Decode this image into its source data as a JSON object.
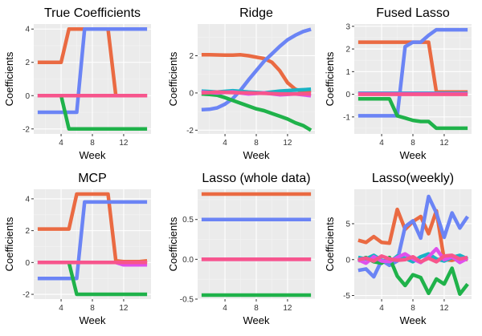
{
  "colors": {
    "panel_bg": "#ebebeb",
    "grid_major": "#ffffff",
    "grid_minor": "#f4f4f4",
    "series": [
      "#ea6a42",
      "#6b84f5",
      "#1fb24a",
      "#19b3c4",
      "#df50ec",
      "#f7558c"
    ]
  },
  "chart_data": [
    {
      "type": "line",
      "title": "True Coefficients",
      "xlabel": "Week",
      "ylabel": "Coefficients",
      "xlim": [
        0.5,
        15.5
      ],
      "ylim": [
        -2.3,
        4.3
      ],
      "xticks": [
        4,
        8,
        12
      ],
      "yticks": [
        -2,
        0,
        2,
        4
      ],
      "ytick_labels": [
        "-2",
        "0",
        "2",
        "4"
      ],
      "grid": true,
      "series": [
        {
          "color": "#ea6a42",
          "x": [
            1,
            2,
            3,
            4,
            5,
            6,
            7,
            8,
            9,
            10,
            11,
            12,
            13,
            14,
            15
          ],
          "values": [
            2,
            2,
            2,
            2,
            4,
            4,
            4,
            4,
            4,
            4,
            0,
            0,
            0,
            0,
            0
          ]
        },
        {
          "color": "#6b84f5",
          "x": [
            1,
            2,
            3,
            4,
            5,
            6,
            7,
            8,
            9,
            10,
            11,
            12,
            13,
            14,
            15
          ],
          "values": [
            -1,
            -1,
            -1,
            -1,
            -1,
            -1,
            4,
            4,
            4,
            4,
            4,
            4,
            4,
            4,
            4
          ]
        },
        {
          "color": "#1fb24a",
          "x": [
            1,
            2,
            3,
            4,
            5,
            6,
            7,
            8,
            9,
            10,
            11,
            12,
            13,
            14,
            15
          ],
          "values": [
            0,
            0,
            0,
            0,
            -2,
            -2,
            -2,
            -2,
            -2,
            -2,
            -2,
            -2,
            -2,
            -2,
            -2
          ]
        },
        {
          "color": "#df50ec",
          "x": [
            1,
            15
          ],
          "values": [
            0,
            0
          ]
        },
        {
          "color": "#f7558c",
          "x": [
            1,
            15
          ],
          "values": [
            0,
            0
          ]
        }
      ]
    },
    {
      "type": "line",
      "title": "Ridge",
      "xlabel": "Week",
      "ylabel": "Coefficients",
      "xlim": [
        0.5,
        15.5
      ],
      "ylim": [
        -2.2,
        3.7
      ],
      "xticks": [
        4,
        8,
        12
      ],
      "yticks": [
        -2,
        0,
        2
      ],
      "ytick_labels": [
        "-2",
        "0",
        "2"
      ],
      "grid": true,
      "series": [
        {
          "color": "#ea6a42",
          "x": [
            1,
            2,
            3,
            4,
            5,
            6,
            7,
            8,
            9,
            10,
            11,
            12,
            13,
            14,
            15
          ],
          "values": [
            2.05,
            2.05,
            2.04,
            2.03,
            2.03,
            2.05,
            2.0,
            1.92,
            1.85,
            1.65,
            1.2,
            0.55,
            0.2,
            0.05,
            0.0
          ]
        },
        {
          "color": "#6b84f5",
          "x": [
            1,
            2,
            3,
            4,
            5,
            6,
            7,
            8,
            9,
            10,
            11,
            12,
            13,
            14,
            15
          ],
          "values": [
            -0.9,
            -0.88,
            -0.8,
            -0.6,
            -0.3,
            0.15,
            0.7,
            1.2,
            1.7,
            2.1,
            2.5,
            2.85,
            3.1,
            3.3,
            3.42
          ]
        },
        {
          "color": "#1fb24a",
          "x": [
            1,
            2,
            3,
            4,
            5,
            6,
            7,
            8,
            9,
            10,
            11,
            12,
            13,
            14,
            15
          ],
          "values": [
            -0.05,
            -0.08,
            -0.12,
            -0.25,
            -0.4,
            -0.55,
            -0.7,
            -0.85,
            -0.95,
            -1.1,
            -1.25,
            -1.4,
            -1.6,
            -1.75,
            -2.0
          ]
        },
        {
          "color": "#19b3c4",
          "x": [
            1,
            3,
            5,
            7,
            9,
            11,
            13,
            15
          ],
          "values": [
            0.1,
            0.05,
            0.12,
            0.05,
            0.0,
            0.1,
            0.15,
            0.2
          ]
        },
        {
          "color": "#df50ec",
          "x": [
            1,
            3,
            5,
            7,
            9,
            11,
            13,
            15
          ],
          "values": [
            0.05,
            0.0,
            0.05,
            -0.05,
            0.0,
            -0.1,
            -0.05,
            -0.15
          ]
        },
        {
          "color": "#f7558c",
          "x": [
            1,
            3,
            5,
            7,
            9,
            11,
            13,
            15
          ],
          "values": [
            0.0,
            0.05,
            0.02,
            0.0,
            -0.02,
            -0.05,
            -0.05,
            -0.05
          ]
        }
      ]
    },
    {
      "type": "line",
      "title": "Fused Lasso",
      "xlabel": "Week",
      "ylabel": "Coefficients",
      "xlim": [
        0.5,
        15.5
      ],
      "ylim": [
        -1.75,
        3.1
      ],
      "xticks": [
        4,
        8,
        12
      ],
      "yticks": [
        -1,
        0,
        1,
        2,
        3
      ],
      "ytick_labels": [
        "-1",
        "0",
        "1",
        "2",
        "3"
      ],
      "grid": true,
      "series": [
        {
          "color": "#ea6a42",
          "x": [
            1,
            2,
            3,
            4,
            5,
            6,
            7,
            8,
            9,
            10,
            11,
            12,
            13,
            14,
            15
          ],
          "values": [
            2.3,
            2.3,
            2.3,
            2.3,
            2.3,
            2.3,
            2.3,
            2.3,
            2.3,
            2.3,
            0.1,
            0.1,
            0.1,
            0.1,
            0.1
          ]
        },
        {
          "color": "#6b84f5",
          "x": [
            1,
            2,
            3,
            4,
            5,
            6,
            7,
            8,
            9,
            10,
            11,
            12,
            13,
            14,
            15
          ],
          "values": [
            -0.95,
            -0.95,
            -0.95,
            -0.95,
            -0.95,
            -0.95,
            2.1,
            2.3,
            2.3,
            2.6,
            2.85,
            2.85,
            2.85,
            2.85,
            2.85
          ]
        },
        {
          "color": "#1fb24a",
          "x": [
            1,
            2,
            3,
            4,
            5,
            6,
            7,
            8,
            9,
            10,
            11,
            12,
            13,
            14,
            15
          ],
          "values": [
            -0.2,
            -0.2,
            -0.2,
            -0.2,
            -0.2,
            -0.95,
            -1.05,
            -1.15,
            -1.2,
            -1.2,
            -1.5,
            -1.5,
            -1.5,
            -1.5,
            -1.5
          ]
        },
        {
          "color": "#19b3c4",
          "x": [
            1,
            15
          ],
          "values": [
            0.05,
            0.05
          ]
        },
        {
          "color": "#df50ec",
          "x": [
            1,
            15
          ],
          "values": [
            0.02,
            0.02
          ]
        },
        {
          "color": "#f7558c",
          "x": [
            1,
            15
          ],
          "values": [
            0.0,
            0.0
          ]
        }
      ]
    },
    {
      "type": "line",
      "title": "MCP",
      "xlabel": "Week",
      "ylabel": "Coefficients",
      "xlim": [
        0.5,
        15.5
      ],
      "ylim": [
        -2.3,
        4.6
      ],
      "xticks": [
        4,
        8,
        12
      ],
      "yticks": [
        -2,
        0,
        2,
        4
      ],
      "ytick_labels": [
        "-2",
        "0",
        "2",
        "4"
      ],
      "grid": true,
      "series": [
        {
          "color": "#ea6a42",
          "x": [
            1,
            2,
            3,
            4,
            5,
            6,
            7,
            8,
            9,
            10,
            11,
            12,
            13,
            14,
            15
          ],
          "values": [
            2.1,
            2.1,
            2.1,
            2.1,
            2.1,
            4.3,
            4.3,
            4.3,
            4.3,
            4.3,
            0.1,
            0.05,
            0.05,
            0.05,
            0.1
          ]
        },
        {
          "color": "#6b84f5",
          "x": [
            1,
            2,
            3,
            4,
            5,
            6,
            7,
            8,
            9,
            10,
            11,
            12,
            13,
            14,
            15
          ],
          "values": [
            -1.0,
            -1.0,
            -1.0,
            -1.0,
            -1.0,
            -1.0,
            3.8,
            3.8,
            3.8,
            3.8,
            3.8,
            3.8,
            3.8,
            3.8,
            3.8
          ]
        },
        {
          "color": "#1fb24a",
          "x": [
            1,
            2,
            3,
            4,
            5,
            6,
            7,
            8,
            9,
            10,
            11,
            12,
            13,
            14,
            15
          ],
          "values": [
            0.0,
            0.0,
            0.0,
            0.0,
            0.0,
            -2.0,
            -2.0,
            -2.0,
            -2.0,
            -2.0,
            -2.0,
            -2.0,
            -2.0,
            -2.0,
            -2.0
          ]
        },
        {
          "color": "#df50ec",
          "x": [
            1,
            11,
            12,
            15
          ],
          "values": [
            0.0,
            0.0,
            -0.15,
            -0.15
          ]
        },
        {
          "color": "#f7558c",
          "x": [
            1,
            15
          ],
          "values": [
            0.0,
            0.0
          ]
        }
      ]
    },
    {
      "type": "line",
      "title": "Lasso (whole data)",
      "xlabel": "Week",
      "ylabel": "Coefficients",
      "xlim": [
        0.5,
        15.5
      ],
      "ylim": [
        -0.5,
        0.88
      ],
      "xticks": [
        4,
        8,
        12
      ],
      "yticks": [
        -0.5,
        0.0,
        0.5
      ],
      "ytick_labels": [
        "-0.5",
        "0.0",
        "0.5"
      ],
      "grid": true,
      "series": [
        {
          "color": "#ea6a42",
          "x": [
            1,
            15
          ],
          "values": [
            0.82,
            0.82
          ]
        },
        {
          "color": "#6b84f5",
          "x": [
            1,
            15
          ],
          "values": [
            0.5,
            0.5
          ]
        },
        {
          "color": "#1fb24a",
          "x": [
            1,
            15
          ],
          "values": [
            -0.45,
            -0.45
          ]
        },
        {
          "color": "#df50ec",
          "x": [
            1,
            15
          ],
          "values": [
            0.0,
            0.0
          ]
        },
        {
          "color": "#f7558c",
          "x": [
            1,
            15
          ],
          "values": [
            0.0,
            0.0
          ]
        }
      ]
    },
    {
      "type": "line",
      "title": "Lasso(weekly)",
      "xlabel": "Week",
      "ylabel": "Coefficients",
      "xlim": [
        0.5,
        15.5
      ],
      "ylim": [
        -5.5,
        9.8
      ],
      "xticks": [
        4,
        8,
        12
      ],
      "yticks": [
        -5,
        0,
        5
      ],
      "ytick_labels": [
        "-5",
        "0",
        "5"
      ],
      "grid": true,
      "series": [
        {
          "color": "#ea6a42",
          "x": [
            1,
            2,
            3,
            4,
            5,
            6,
            7,
            8,
            9,
            10,
            11,
            12,
            13,
            14,
            15
          ],
          "values": [
            2.7,
            2.4,
            3.2,
            2.4,
            2.3,
            7.0,
            4.2,
            5.3,
            6.0,
            3.6,
            6.8,
            0.0,
            -0.1,
            0.2,
            0.0
          ]
        },
        {
          "color": "#6b84f5",
          "x": [
            1,
            2,
            3,
            4,
            5,
            6,
            7,
            8,
            9,
            10,
            11,
            12,
            13,
            14,
            15
          ],
          "values": [
            -1.5,
            -1.3,
            -2.4,
            -0.1,
            -0.8,
            -0.2,
            4.6,
            5.4,
            3.0,
            8.8,
            6.5,
            3.1,
            6.5,
            4.4,
            6.0
          ]
        },
        {
          "color": "#1fb24a",
          "x": [
            1,
            2,
            3,
            4,
            5,
            6,
            7,
            8,
            9,
            10,
            11,
            12,
            13,
            14,
            15
          ],
          "values": [
            -0.2,
            0.3,
            -0.3,
            -0.5,
            0.3,
            -2.3,
            -3.6,
            -2.1,
            -2.5,
            -4.7,
            -2.7,
            -3.4,
            -1.2,
            -4.8,
            -3.4
          ]
        },
        {
          "color": "#19b3c4",
          "x": [
            1,
            2,
            3,
            4,
            5,
            6,
            7,
            8,
            9,
            10,
            11,
            12,
            13,
            14,
            15
          ],
          "values": [
            0.3,
            0.1,
            0.6,
            -0.1,
            -0.4,
            0.5,
            0.2,
            -0.3,
            0.4,
            0.8,
            0.1,
            -0.2,
            0.3,
            0.6,
            0.1
          ]
        },
        {
          "color": "#df50ec",
          "x": [
            1,
            2,
            3,
            4,
            5,
            6,
            7,
            8,
            9,
            10,
            11,
            12,
            13,
            14,
            15
          ],
          "values": [
            0.0,
            -0.5,
            0.4,
            -0.2,
            -0.3,
            0.3,
            0.8,
            0.1,
            -0.4,
            0.4,
            1.5,
            0.0,
            0.4,
            -0.4,
            0.2
          ]
        },
        {
          "color": "#f7558c",
          "x": [
            1,
            2,
            3,
            4,
            5,
            6,
            7,
            8,
            9,
            10,
            11,
            12,
            13,
            14,
            15
          ],
          "values": [
            0.0,
            0.2,
            -0.2,
            0.5,
            0.1,
            -0.1,
            0.0,
            0.4,
            -0.3,
            0.2,
            -0.3,
            0.5,
            0.6,
            0.1,
            0.3
          ]
        }
      ]
    }
  ]
}
